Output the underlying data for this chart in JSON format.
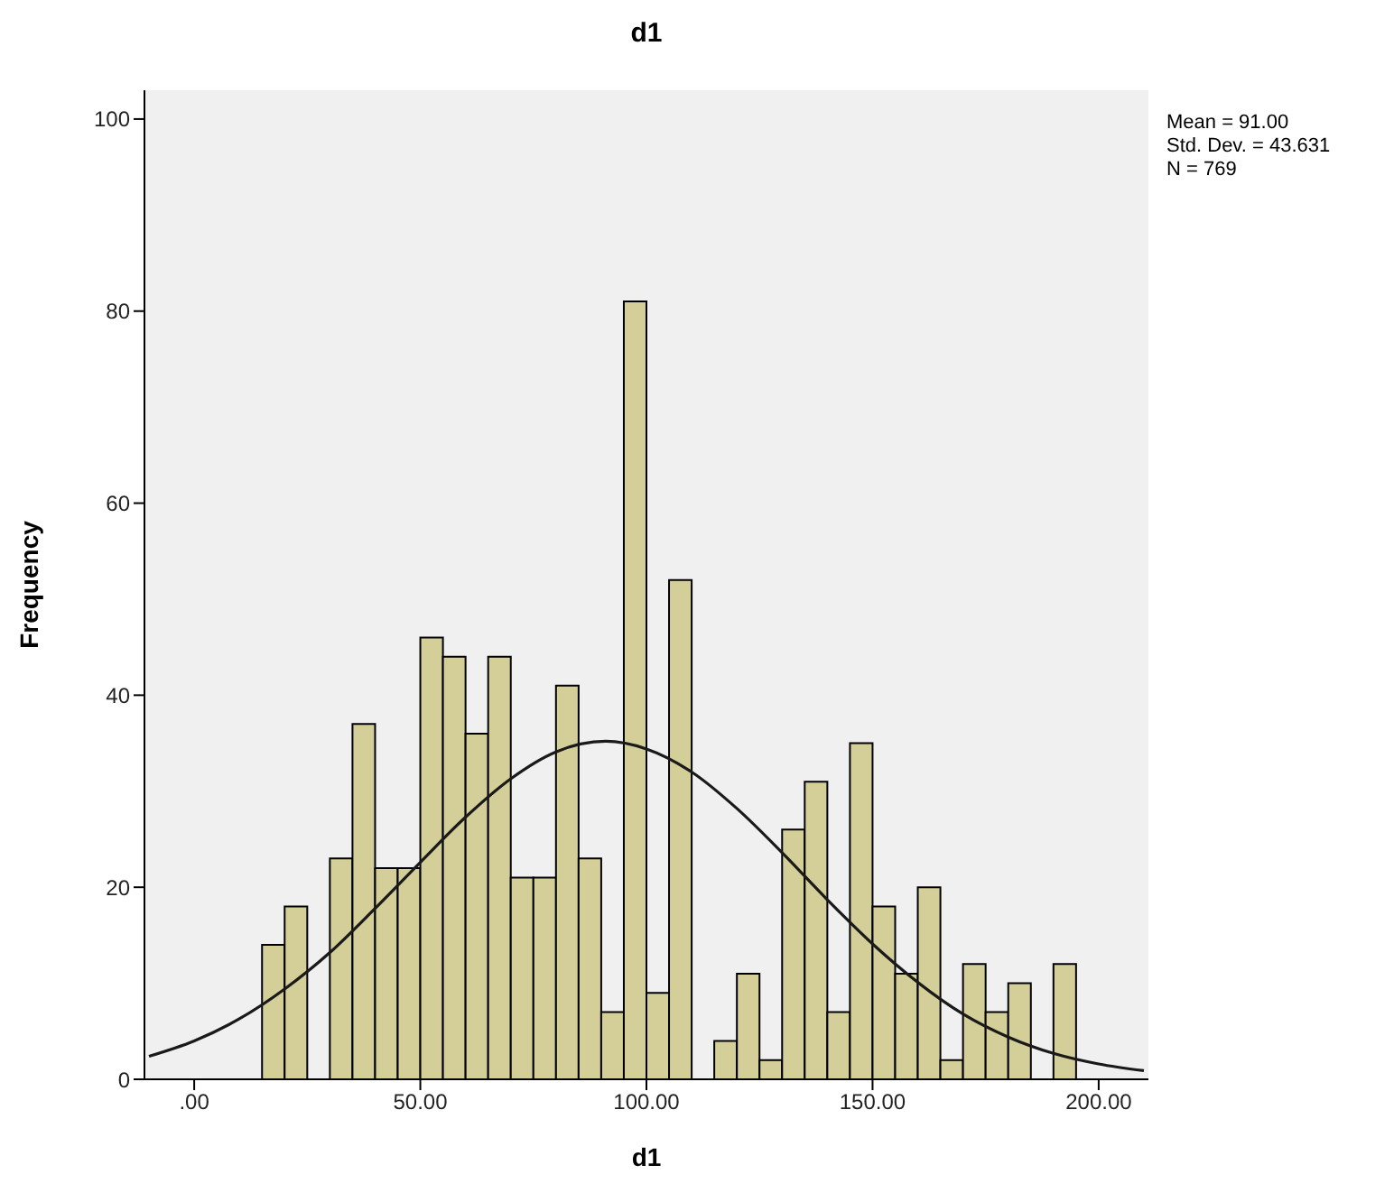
{
  "chart_data": {
    "type": "histogram",
    "title": "d1",
    "xlabel": "d1",
    "ylabel": "Frequency",
    "bins": [
      15,
      20,
      25,
      30,
      35,
      40,
      45,
      50,
      55,
      60,
      65,
      70,
      75,
      80,
      85,
      90,
      95,
      100,
      105,
      110,
      115,
      120,
      125,
      130,
      135,
      140,
      145,
      150,
      155,
      160,
      165,
      170,
      175,
      180,
      185,
      190,
      195
    ],
    "values": [
      14,
      18,
      0,
      23,
      37,
      22,
      22,
      46,
      44,
      36,
      44,
      21,
      21,
      41,
      23,
      7,
      81,
      9,
      52,
      0,
      4,
      11,
      2,
      26,
      31,
      7,
      35,
      18,
      11,
      20,
      2,
      12,
      7,
      10,
      0,
      12
    ],
    "color": "#d4cf98",
    "series": [
      {
        "type": "line",
        "color": "#1a1a1a",
        "x": [
          -10,
          0,
          10,
          20,
          30,
          40,
          50,
          60,
          70,
          80,
          91,
          100,
          110,
          120,
          130,
          140,
          150,
          160,
          170,
          180,
          190,
          200,
          210
        ],
        "values": [
          2.4,
          4.0,
          6.3,
          9.4,
          13.2,
          17.8,
          22.6,
          27.3,
          31.3,
          34.1,
          35.2,
          34.4,
          32.0,
          28.2,
          23.6,
          18.7,
          14.1,
          10.1,
          6.8,
          4.4,
          2.7,
          1.6,
          0.9
        ]
      }
    ],
    "xlim": [
      -11,
      211
    ],
    "xticks": [
      {
        "value": 0,
        "label": ".00"
      },
      {
        "value": 50,
        "label": "50.00"
      },
      {
        "value": 100,
        "label": "100.00"
      },
      {
        "value": 150,
        "label": "150.00"
      },
      {
        "value": 200,
        "label": "200.00"
      }
    ],
    "ylim": [
      0,
      103
    ],
    "yticks": [
      0,
      20,
      40,
      60,
      80,
      100
    ],
    "grid": false,
    "legend": false,
    "marker": "none",
    "annotations": [
      "Mean = 91.00",
      "Std. Dev. = 43.631",
      "N = 769"
    ]
  }
}
